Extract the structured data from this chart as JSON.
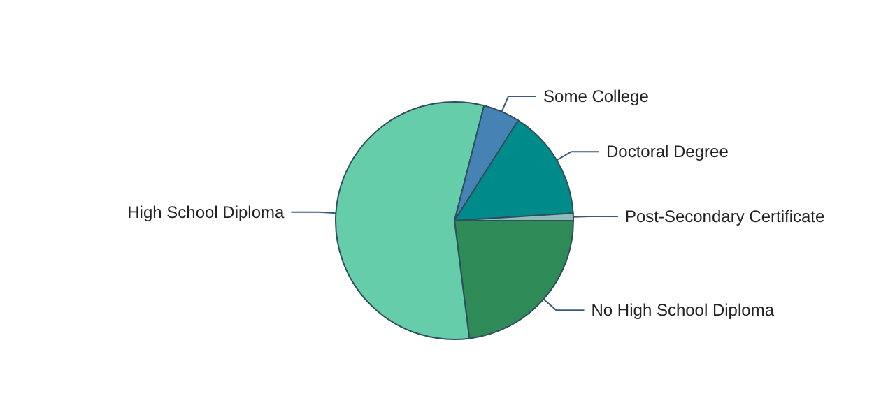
{
  "chart_data": {
    "type": "pie",
    "categories": [
      "No High School Diploma",
      "High School Diploma",
      "Some College",
      "Doctoral Degree",
      "Post-Secondary Certificate"
    ],
    "values": [
      23,
      56,
      5,
      15,
      1
    ],
    "colors": [
      "#2e8b57",
      "#66cdaa",
      "#4682b4",
      "#008b8b",
      "#8fbcbb"
    ],
    "legend": false
  }
}
